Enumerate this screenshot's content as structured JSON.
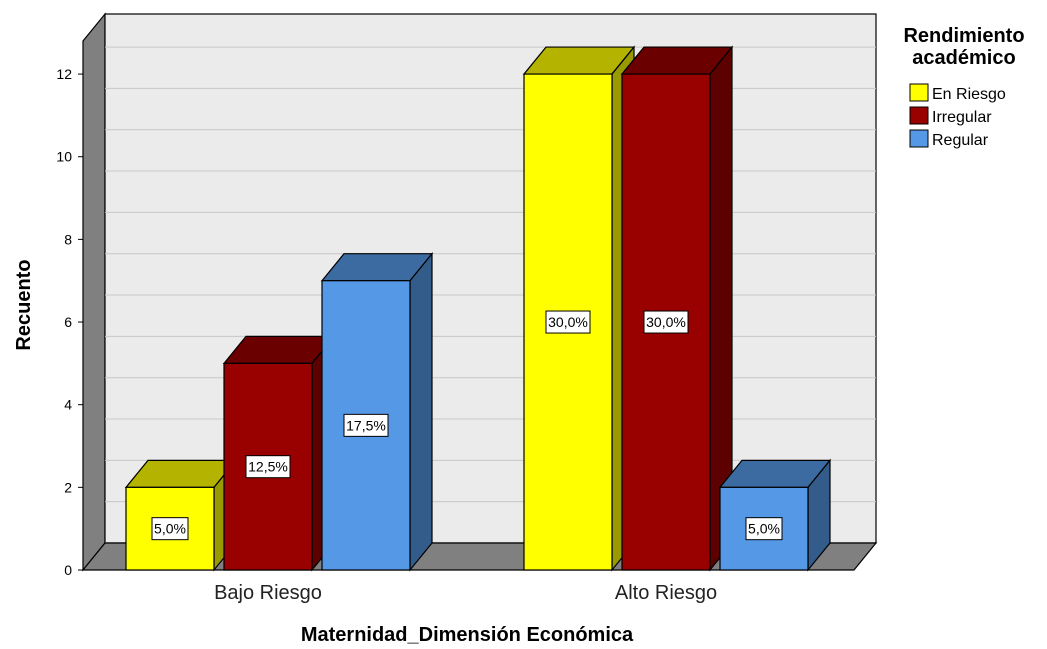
{
  "chart_data": {
    "type": "bar",
    "title": "",
    "xlabel": "Maternidad_Dimensión Económica",
    "ylabel": "Recuento",
    "ylim": [
      0,
      12.8
    ],
    "yticks": [
      0,
      2,
      4,
      6,
      8,
      10,
      12
    ],
    "grid": true,
    "categories": [
      "Bajo Riesgo",
      "Alto Riesgo"
    ],
    "legend_title_lines": [
      "Rendimiento",
      "académico"
    ],
    "legend_position": "top-right",
    "series": [
      {
        "name": "En Riesgo",
        "color": "#ffff00",
        "values": [
          2,
          12
        ],
        "labels": [
          "5,0%",
          "30,0%"
        ]
      },
      {
        "name": "Irregular",
        "color": "#990000",
        "values": [
          5,
          12
        ],
        "labels": [
          "12,5%",
          "30,0%"
        ]
      },
      {
        "name": "Regular",
        "color": "#5599e6",
        "values": [
          7,
          2
        ],
        "labels": [
          "17,5%",
          "5,0%"
        ]
      }
    ]
  }
}
